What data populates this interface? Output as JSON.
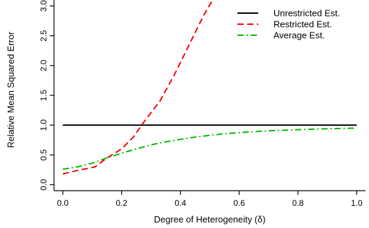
{
  "chart_data": {
    "type": "line",
    "xlabel": "Degree of Heterogeneity (δ)",
    "ylabel": "Relative Mean Squared Error",
    "xlim": [
      -0.03,
      1.03
    ],
    "ylim": [
      -0.1,
      3.1
    ],
    "x_ticks": [
      0.0,
      0.2,
      0.4,
      0.6,
      0.8,
      1.0
    ],
    "x_tick_labels": [
      "0.0",
      "0.2",
      "0.4",
      "0.6",
      "0.8",
      "1.0"
    ],
    "y_ticks": [
      0.0,
      0.5,
      1.0,
      1.5,
      2.0,
      2.5,
      3.0
    ],
    "y_tick_labels": [
      "0.0",
      "0.5",
      "1.0",
      "1.5",
      "2.0",
      "2.5",
      "3.0"
    ],
    "grid": false,
    "legend_position": "top-right",
    "series": [
      {
        "name": "Unrestricted Est.",
        "color": "#000000",
        "dash": "solid",
        "x": [
          0.0,
          1.0
        ],
        "y": [
          1.0,
          1.0
        ]
      },
      {
        "name": "Restricted Est.",
        "color": "#ff0000",
        "dash": "dashed",
        "x": [
          0.0,
          0.05,
          0.11,
          0.15,
          0.2,
          0.24,
          0.28,
          0.33,
          0.38,
          0.43,
          0.48,
          0.51
        ],
        "y": [
          0.18,
          0.24,
          0.3,
          0.45,
          0.6,
          0.8,
          1.08,
          1.4,
          1.85,
          2.35,
          2.85,
          3.1
        ]
      },
      {
        "name": "Average Est.",
        "color": "#00bb00",
        "dash": "dashdot",
        "x": [
          0.0,
          0.05,
          0.1,
          0.15,
          0.2,
          0.25,
          0.3,
          0.35,
          0.4,
          0.45,
          0.5,
          0.55,
          0.6,
          0.65,
          0.7,
          0.75,
          0.8,
          0.85,
          0.9,
          0.95,
          1.0
        ],
        "y": [
          0.26,
          0.3,
          0.36,
          0.45,
          0.53,
          0.6,
          0.67,
          0.72,
          0.76,
          0.8,
          0.83,
          0.855,
          0.875,
          0.89,
          0.905,
          0.915,
          0.925,
          0.932,
          0.94,
          0.945,
          0.95
        ]
      }
    ]
  }
}
